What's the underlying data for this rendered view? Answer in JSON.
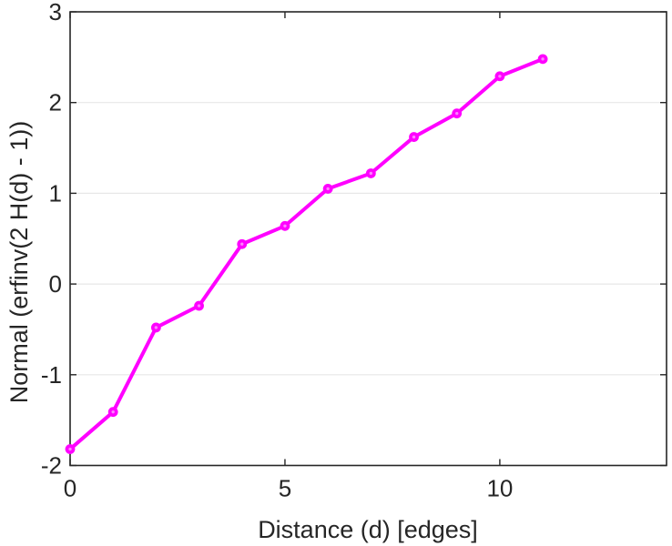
{
  "chart_data": {
    "type": "line",
    "title": "",
    "xlabel": "Distance (d) [edges]",
    "ylabel": "Normal (erfinv(2 H(d) - 1))",
    "x": [
      0,
      1,
      2,
      3,
      4,
      5,
      6,
      7,
      8,
      9,
      10,
      11
    ],
    "y": [
      -1.82,
      -1.41,
      -0.48,
      -0.24,
      0.44,
      0.64,
      1.05,
      1.22,
      1.62,
      1.88,
      2.29,
      2.48
    ],
    "xlim": [
      0,
      13.88
    ],
    "ylim": [
      -2,
      3
    ],
    "xticks": [
      0,
      5,
      10
    ],
    "yticks": [
      -2,
      -1,
      0,
      1,
      2,
      3
    ],
    "grid": "horizontal-only",
    "legend": "none",
    "line_color": "#ff00ff",
    "marker": "circle",
    "marker_center_color": "#ff82ff",
    "axis_color": "#262626",
    "grid_color": "#e7e7e7",
    "background": "#ffffff"
  }
}
